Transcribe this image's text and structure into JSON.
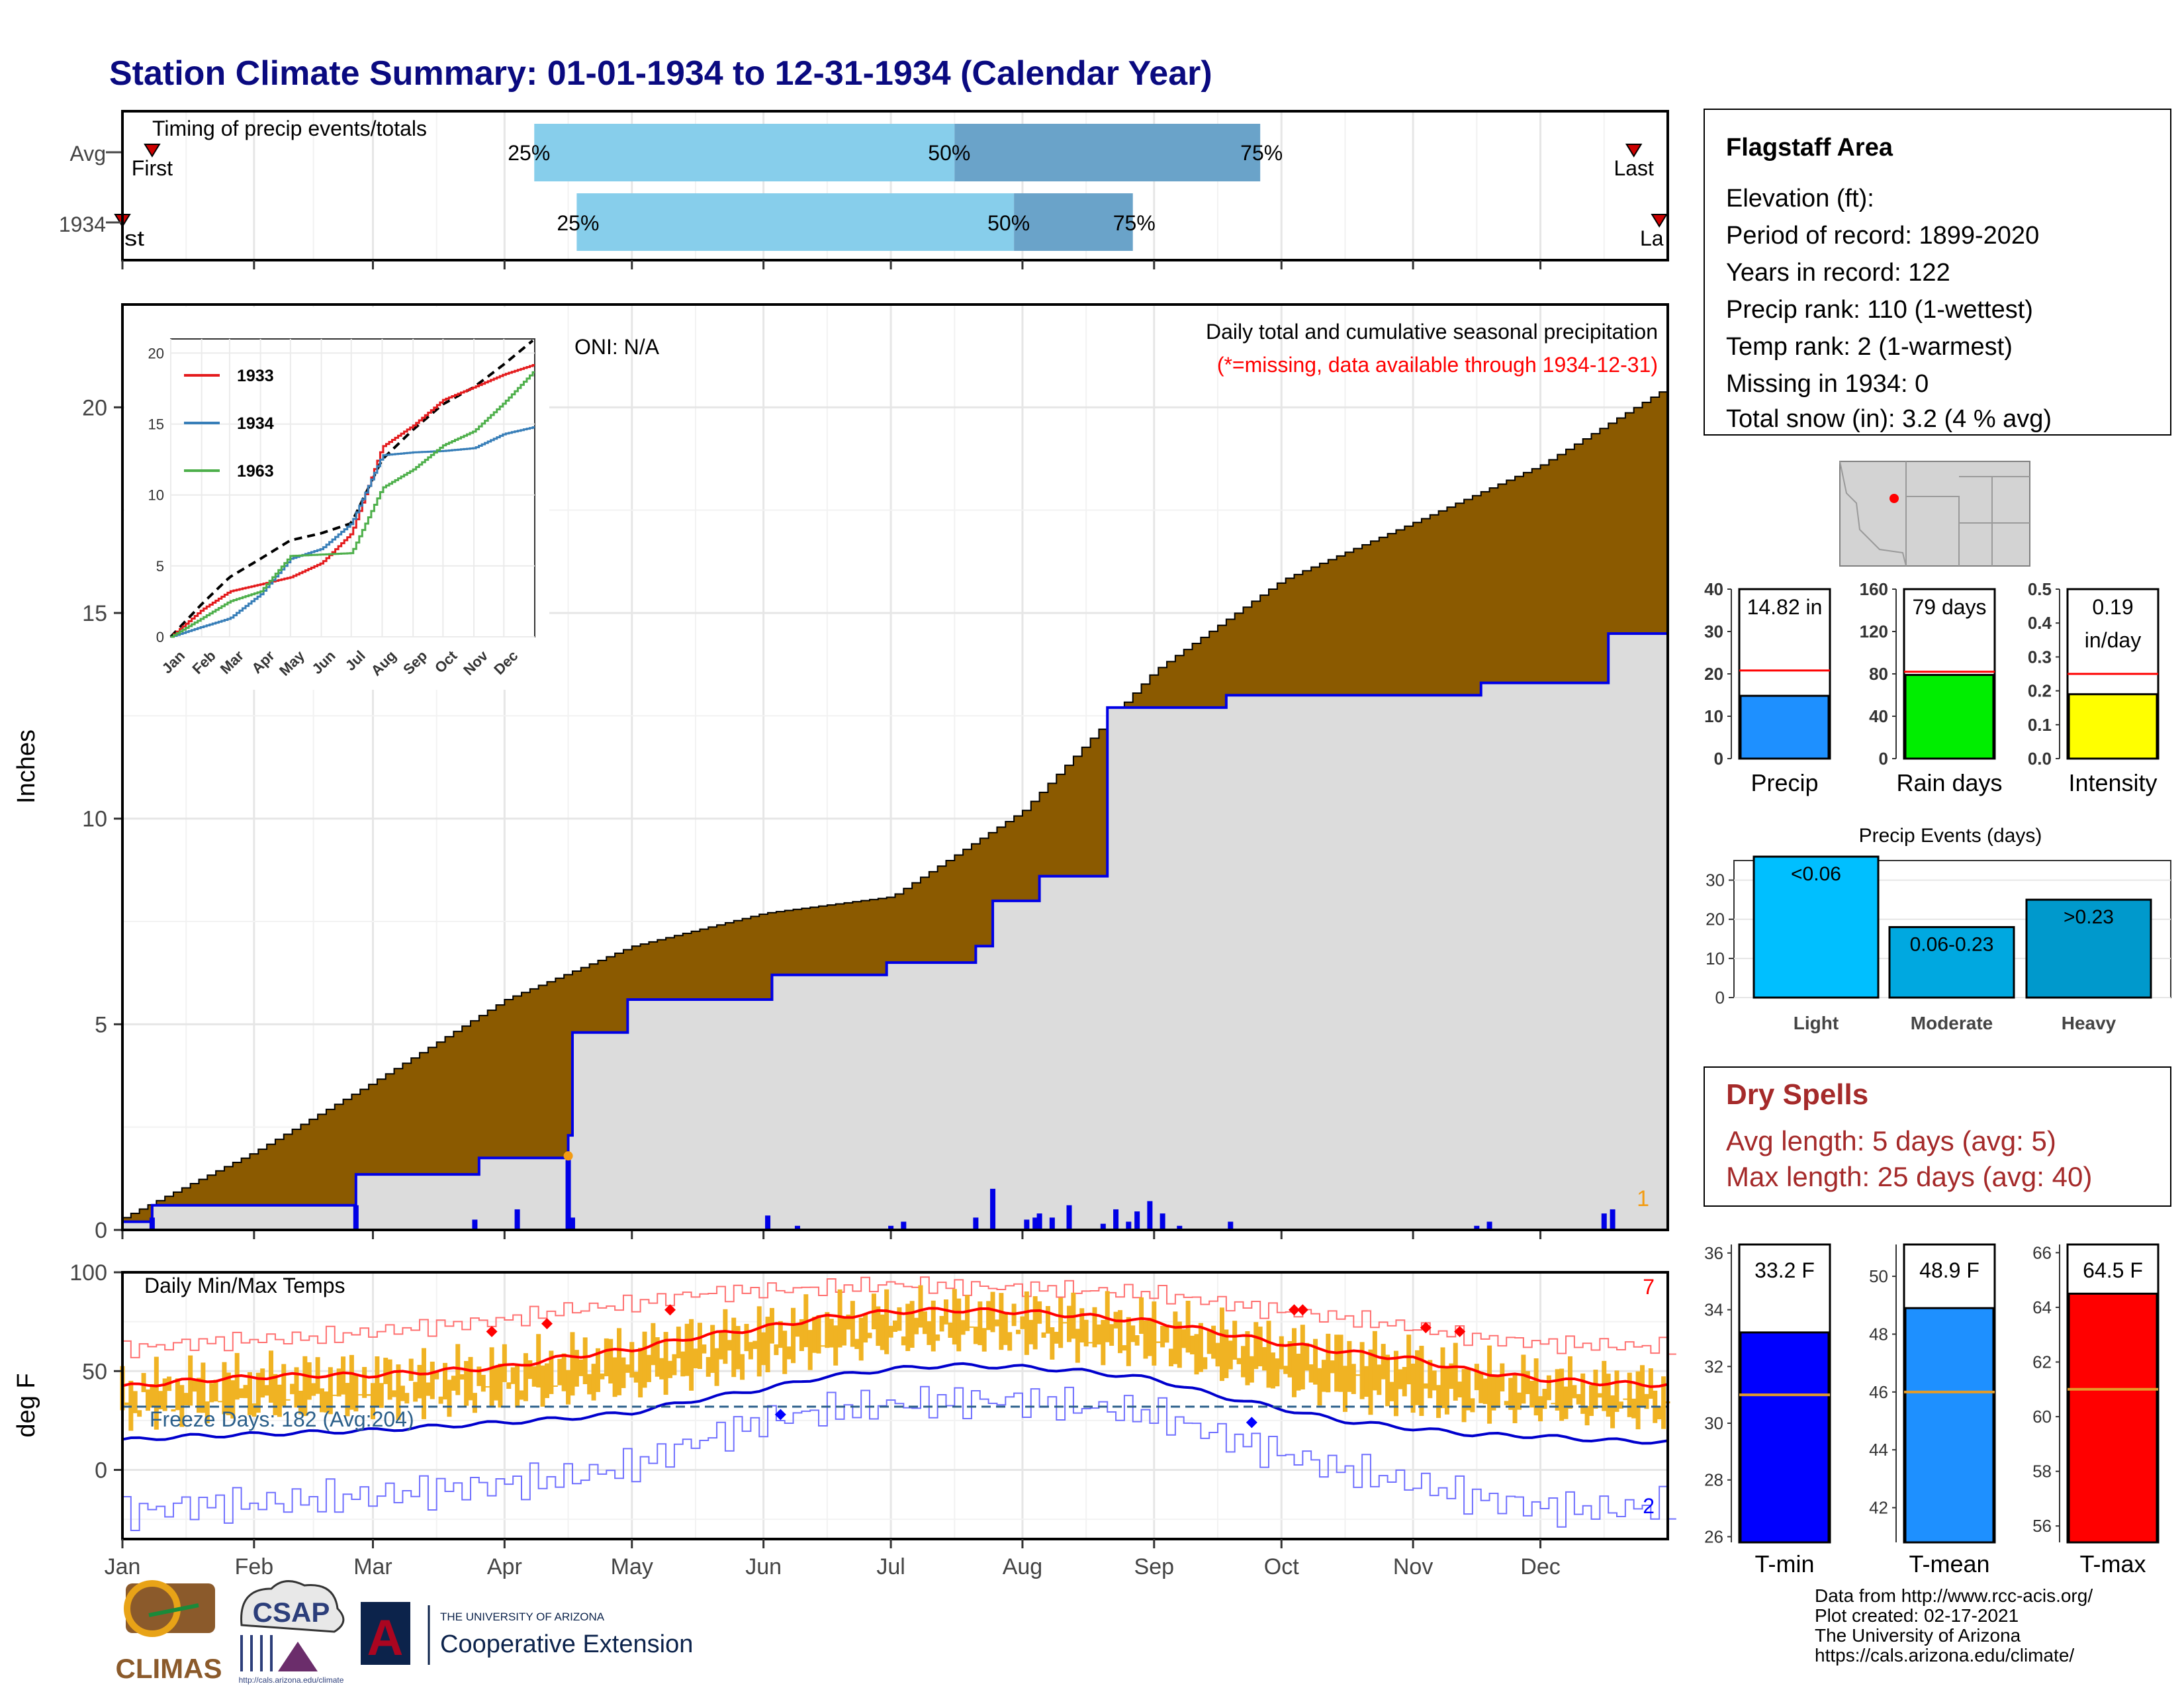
{
  "title": "Station Climate Summary: 01-01-1934 to 12-31-1934 (Calendar Year)",
  "colors": {
    "title": "#0a0a80",
    "precip_fill": "#8b5a00",
    "cum_area": "#dcdcdc",
    "cum_line": "#0000e6",
    "timing_light": "#87ceeb",
    "timing_dark": "#6aa3c9",
    "temp_bar": "#f0b323",
    "tmax_line": "#ff0000",
    "tmin_line": "#0000cd",
    "dry_spells": "#a52a2a",
    "precip_bar": "#1e90ff",
    "raindays_bar": "#00ee00",
    "intensity_bar": "#ffff00",
    "tmin_bar": "#0000ff",
    "tmean_bar": "#1e90ff",
    "tmax_bar": "#ff0000"
  },
  "timing": {
    "title": "Timing of precip events/totals",
    "rows": [
      {
        "label": "Avg",
        "first_label": "First",
        "last_label": "Last",
        "p25": "25%",
        "p50": "50%",
        "p75": "75%",
        "first_day": 8,
        "q25_day": 98,
        "q50_day": 197,
        "q75_day": 269,
        "last_day": 357
      },
      {
        "label": "1934",
        "first_label": "First",
        "last_label": "Last",
        "p25": "25%",
        "p50": "50%",
        "p75": "75%",
        "first_day": 1,
        "q25_day": 108,
        "q50_day": 211,
        "q75_day": 239,
        "last_day": 363
      }
    ]
  },
  "main_panel": {
    "ylabel": "Inches",
    "title": "Daily total and cumulative seasonal precipitation",
    "subtitle": "(*=missing, data available through 1934-12-31)",
    "oni": "ONI: N/A",
    "max_daily_label": "1",
    "yticks": [
      "0",
      "5",
      "10",
      "15",
      "20"
    ]
  },
  "months": [
    "Jan",
    "Feb",
    "Mar",
    "Apr",
    "May",
    "Jun",
    "Jul",
    "Aug",
    "Sep",
    "Oct",
    "Nov",
    "Dec"
  ],
  "inset": {
    "months": [
      "Jan",
      "Feb",
      "Mar",
      "Apr",
      "May",
      "Jun",
      "Jul",
      "Aug",
      "Sep",
      "Oct",
      "Nov",
      "Dec"
    ],
    "yticks": [
      "0",
      "5",
      "10",
      "15",
      "20"
    ],
    "legend": [
      {
        "name": "1933",
        "color": "#e41a1c"
      },
      {
        "name": "1934",
        "color": "#377eb8"
      },
      {
        "name": "1963",
        "color": "#4daf4a"
      }
    ]
  },
  "temp_panel": {
    "ylabel": "deg F",
    "title": "Daily Min/Max Temps",
    "record_high_count": "7",
    "record_low_count": "2",
    "freeze_label": "Freeze Days: 182 (Avg:204)",
    "yticks": [
      "0",
      "50",
      "100"
    ]
  },
  "station": {
    "name": "Flagstaff Area",
    "elevation": "Elevation (ft):",
    "period": "Period of record: 1899-2020",
    "years": "Years in record: 122",
    "precip_rank": "Precip rank: 110 (1-wettest)",
    "temp_rank": "Temp rank: 2 (1-warmest)",
    "missing": "Missing in 1934: 0",
    "snow": "Total snow (in): 3.2 (4 % avg)"
  },
  "mini_bars": [
    {
      "label": "Precip",
      "value_label": "14.82 in",
      "value_label2": "",
      "value": 14.82,
      "avg": 20.8,
      "ymax": 40,
      "ticks": [
        "0",
        "10",
        "20",
        "30",
        "40"
      ],
      "tickvals": [
        0,
        10,
        20,
        30,
        40
      ],
      "color": "#1e90ff"
    },
    {
      "label": "Rain days",
      "value_label": "79 days",
      "value_label2": "",
      "value": 79,
      "avg": 82,
      "ymax": 160,
      "ticks": [
        "0",
        "40",
        "80",
        "120",
        "160"
      ],
      "tickvals": [
        0,
        40,
        80,
        120,
        160
      ],
      "color": "#00ee00"
    },
    {
      "label": "Intensity",
      "value_label": "0.19",
      "value_label2": "in/day",
      "value": 0.19,
      "avg": 0.25,
      "ymax": 0.5,
      "ticks": [
        "0.0",
        "0.1",
        "0.2",
        "0.3",
        "0.4",
        "0.5"
      ],
      "tickvals": [
        0,
        0.1,
        0.2,
        0.3,
        0.4,
        0.5
      ],
      "color": "#ffff00"
    }
  ],
  "events": {
    "title": "Precip Events (days)",
    "yticks": [
      "0",
      "10",
      "20",
      "30"
    ],
    "categories": [
      "Light",
      "Moderate",
      "Heavy"
    ],
    "bar_labels": [
      "<0.06",
      "0.06-0.23",
      ">0.23"
    ],
    "values": [
      36,
      18,
      25
    ],
    "colors": [
      "#00bfff",
      "#00a8e0",
      "#0099cc"
    ]
  },
  "dry_spells": {
    "title": "Dry Spells",
    "avg": "Avg length: 5 days (avg: 5)",
    "max": "Max length: 25 days (avg: 40)"
  },
  "temp_bars": [
    {
      "label": "T-min",
      "value_label": "33.2 F",
      "value": 33.2,
      "avg": 31.0,
      "ymin": 25.8,
      "ymax": 36.3,
      "ticks": [
        "26",
        "28",
        "30",
        "32",
        "34",
        "36"
      ],
      "tickvals": [
        26,
        28,
        30,
        32,
        34,
        36
      ],
      "color": "#0000ff"
    },
    {
      "label": "T-mean",
      "value_label": "48.9 F",
      "value": 48.9,
      "avg": 46.0,
      "ymin": 40.8,
      "ymax": 51.1,
      "ticks": [
        "42",
        "44",
        "46",
        "48",
        "50"
      ],
      "tickvals": [
        42,
        44,
        46,
        48,
        50
      ],
      "color": "#1e90ff"
    },
    {
      "label": "T-max",
      "value_label": "64.5 F",
      "value": 64.5,
      "avg": 61.0,
      "ymin": 55.4,
      "ymax": 66.3,
      "ticks": [
        "56",
        "58",
        "60",
        "62",
        "64",
        "66"
      ],
      "tickvals": [
        56,
        58,
        60,
        62,
        64,
        66
      ],
      "color": "#ff0000"
    }
  ],
  "footer": {
    "line1": "Data from http://www.rcc-acis.org/",
    "line2": "Plot created: 02-17-2021",
    "line3": "The University of Arizona",
    "line4": "https://cals.arizona.edu/climate/"
  },
  "logos": {
    "climas": "CLIMAS",
    "csap": "CSAP",
    "csap_url": "http://cals.arizona.edu/climate",
    "ua_small": "THE UNIVERSITY OF ARIZONA",
    "ua_big": "Cooperative Extension",
    "ua_letter": "A"
  },
  "chart_data": [
    {
      "type": "area",
      "title": "Daily total and cumulative seasonal precipitation",
      "ylabel": "Inches",
      "ylim": [
        0,
        22.5
      ],
      "x_domain_days": [
        1,
        365
      ],
      "series": [
        {
          "name": "",
          "x_day": [
            1,
            32,
            60,
            91,
            121,
            152,
            182,
            213,
            244,
            274,
            305,
            335,
            365
          ],
          "values": [
            0.3,
            1.9,
            3.6,
            5.6,
            6.9,
            7.7,
            8.1,
            10.2,
            13.6,
            15.8,
            17.2,
            18.6,
            20.5
          ]
        },
        {
          "name": "",
          "x_day": [
            1,
            7,
            8,
            24,
            25,
            55,
            56,
            84,
            85,
            105,
            106,
            106,
            107,
            119,
            120,
            153,
            154,
            180,
            181,
            201,
            202,
            205,
            206,
            216,
            217,
            232,
            233,
            260,
            261,
            320,
            321,
            350,
            351,
            365
          ],
          "values": [
            0.2,
            0.2,
            0.6,
            0.6,
            0.6,
            0.6,
            1.35,
            1.35,
            1.75,
            1.75,
            2.3,
            2.3,
            4.8,
            4.8,
            5.6,
            5.6,
            6.2,
            6.2,
            6.5,
            6.5,
            6.9,
            6.9,
            8.0,
            8.0,
            8.6,
            8.6,
            12.7,
            12.7,
            13.0,
            13.0,
            13.3,
            13.3,
            14.5,
            14.82
          ]
        }
      ],
      "daily_bars": {
        "x_day": [
          8,
          56,
          84,
          94,
          106,
          107,
          153,
          160,
          182,
          185,
          202,
          206,
          214,
          216,
          217,
          220,
          224,
          232,
          235,
          238,
          240,
          243,
          246,
          250,
          262,
          320,
          323,
          350,
          352
        ],
        "values": [
          0.3,
          0.6,
          0.25,
          0.5,
          1.7,
          0.3,
          0.35,
          0.1,
          0.1,
          0.2,
          0.3,
          1.0,
          0.25,
          0.3,
          0.4,
          0.3,
          0.6,
          0.15,
          0.5,
          0.2,
          0.45,
          0.7,
          0.4,
          0.1,
          0.2,
          0.1,
          0.2,
          0.4,
          0.5
        ]
      }
    },
    {
      "type": "line",
      "title": "",
      "ylim": [
        0,
        21
      ],
      "x": [
        0,
        31,
        59,
        90,
        120,
        151,
        181,
        212,
        243,
        273,
        304,
        334,
        365
      ],
      "series": [
        {
          "name": "",
          "values": [
            0,
            2.3,
            4.2,
            5.5,
            6.8,
            7.3,
            8.0,
            12.5,
            14.6,
            16.4,
            17.6,
            19.2,
            21.0
          ]
        },
        {
          "name": "1933",
          "values": [
            0,
            1.9,
            3.2,
            3.7,
            4.2,
            5.2,
            7.3,
            13.4,
            14.9,
            16.7,
            17.6,
            18.5,
            19.2
          ]
        },
        {
          "name": "1934",
          "values": [
            0,
            0.7,
            1.3,
            3.0,
            5.5,
            6.2,
            8.0,
            12.8,
            13.0,
            13.1,
            13.3,
            14.3,
            14.8
          ]
        },
        {
          "name": "1963",
          "values": [
            0,
            1.3,
            2.5,
            3.2,
            5.7,
            5.8,
            5.9,
            10.5,
            11.8,
            13.5,
            14.5,
            16.5,
            18.8
          ]
        }
      ]
    },
    {
      "type": "bar",
      "title": "Daily Min/Max Temps",
      "ylabel": "deg F",
      "ylim": [
        -35,
        100
      ],
      "x_day": [
        1,
        16,
        32,
        46,
        60,
        75,
        91,
        105,
        121,
        135,
        152,
        166,
        182,
        196,
        213,
        227,
        244,
        258,
        274,
        288,
        305,
        319,
        335,
        350,
        365
      ],
      "series": [
        {
          "name": "",
          "values": [
            42,
            45,
            47,
            48,
            48,
            50,
            52,
            57,
            61,
            67,
            72,
            77,
            80,
            81,
            80,
            78,
            75,
            70,
            64,
            60,
            56,
            50,
            46,
            44,
            43
          ]
        },
        {
          "name": "",
          "values": [
            15,
            17,
            18,
            19,
            20,
            22,
            24,
            26,
            29,
            35,
            41,
            47,
            51,
            53,
            52,
            50,
            46,
            38,
            31,
            25,
            21,
            18,
            17,
            15,
            14
          ]
        },
        {
          "name": "",
          "values": [
            61,
            64,
            66,
            67,
            70,
            73,
            76,
            81,
            84,
            89,
            91,
            92,
            94,
            93,
            92,
            91,
            89,
            85,
            80,
            77,
            72,
            67,
            64,
            63,
            62
          ]
        },
        {
          "name": "",
          "values": [
            -22,
            -18,
            -17,
            -15,
            -13,
            -10,
            -7,
            -4,
            2,
            14,
            25,
            30,
            33,
            35,
            35,
            32,
            28,
            18,
            8,
            0,
            -7,
            -14,
            -19,
            -20,
            -18
          ]
        }
      ],
      "freeze_line": 32
    }
  ]
}
